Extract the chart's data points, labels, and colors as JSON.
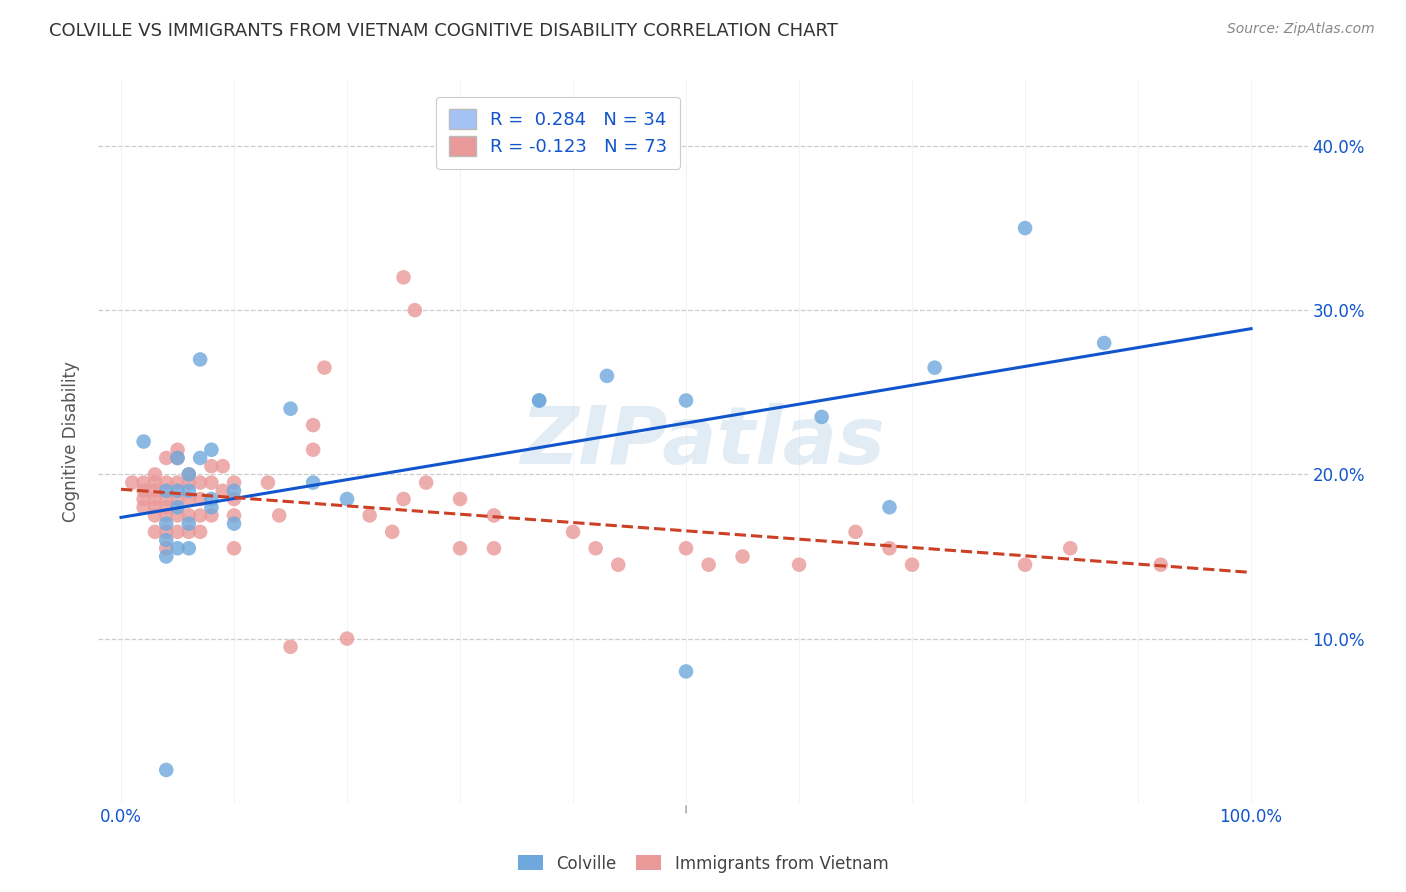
{
  "title": "COLVILLE VS IMMIGRANTS FROM VIETNAM COGNITIVE DISABILITY CORRELATION CHART",
  "source": "Source: ZipAtlas.com",
  "ylabel": "Cognitive Disability",
  "y_tick_labels": [
    "10.0%",
    "20.0%",
    "30.0%",
    "40.0%"
  ],
  "y_tick_values": [
    0.1,
    0.2,
    0.3,
    0.4
  ],
  "x_tick_values": [
    0.0,
    0.1,
    0.2,
    0.3,
    0.4,
    0.5,
    0.6,
    0.7,
    0.8,
    0.9,
    1.0
  ],
  "x_tick_labels_visible": {
    "0.0": "0.0%",
    "1.0": "100.0%"
  },
  "xlim": [
    -0.02,
    1.05
  ],
  "ylim": [
    0.0,
    0.44
  ],
  "colville_R": 0.284,
  "colville_N": 34,
  "vietnam_R": -0.123,
  "vietnam_N": 73,
  "colville_color": "#6fa8dc",
  "vietnam_color": "#ea9999",
  "trendline_colville_color": "#1155cc",
  "trendline_vietnam_color": "#cc4125",
  "trendline_vietnam_style": "--",
  "legend_box_colville": "#a4c2f4",
  "legend_box_vietnam": "#ea9999",
  "watermark": "ZIPatlas",
  "colville_x": [
    0.02,
    0.07,
    0.07,
    0.04,
    0.04,
    0.04,
    0.04,
    0.05,
    0.05,
    0.05,
    0.05,
    0.06,
    0.06,
    0.06,
    0.06,
    0.08,
    0.08,
    0.08,
    0.1,
    0.1,
    0.15,
    0.17,
    0.2,
    0.37,
    0.37,
    0.43,
    0.5,
    0.5,
    0.62,
    0.68,
    0.72,
    0.8,
    0.87,
    0.04
  ],
  "colville_y": [
    0.22,
    0.27,
    0.21,
    0.19,
    0.17,
    0.16,
    0.15,
    0.21,
    0.19,
    0.18,
    0.155,
    0.2,
    0.19,
    0.17,
    0.155,
    0.215,
    0.185,
    0.18,
    0.19,
    0.17,
    0.24,
    0.195,
    0.185,
    0.245,
    0.245,
    0.26,
    0.245,
    0.08,
    0.235,
    0.18,
    0.265,
    0.35,
    0.28,
    0.02
  ],
  "vietnam_x": [
    0.01,
    0.02,
    0.02,
    0.02,
    0.02,
    0.03,
    0.03,
    0.03,
    0.03,
    0.03,
    0.03,
    0.03,
    0.04,
    0.04,
    0.04,
    0.04,
    0.04,
    0.04,
    0.04,
    0.05,
    0.05,
    0.05,
    0.05,
    0.05,
    0.05,
    0.06,
    0.06,
    0.06,
    0.06,
    0.06,
    0.07,
    0.07,
    0.07,
    0.07,
    0.08,
    0.08,
    0.08,
    0.09,
    0.09,
    0.1,
    0.1,
    0.1,
    0.1,
    0.13,
    0.14,
    0.15,
    0.17,
    0.17,
    0.18,
    0.2,
    0.22,
    0.24,
    0.25,
    0.25,
    0.26,
    0.27,
    0.3,
    0.3,
    0.33,
    0.33,
    0.4,
    0.42,
    0.44,
    0.5,
    0.52,
    0.55,
    0.6,
    0.65,
    0.68,
    0.7,
    0.8,
    0.84,
    0.92
  ],
  "vietnam_y": [
    0.195,
    0.195,
    0.19,
    0.185,
    0.18,
    0.2,
    0.195,
    0.19,
    0.185,
    0.18,
    0.175,
    0.165,
    0.21,
    0.195,
    0.185,
    0.18,
    0.175,
    0.165,
    0.155,
    0.215,
    0.21,
    0.195,
    0.185,
    0.175,
    0.165,
    0.2,
    0.195,
    0.185,
    0.175,
    0.165,
    0.195,
    0.185,
    0.175,
    0.165,
    0.205,
    0.195,
    0.175,
    0.205,
    0.19,
    0.195,
    0.185,
    0.175,
    0.155,
    0.195,
    0.175,
    0.095,
    0.23,
    0.215,
    0.265,
    0.1,
    0.175,
    0.165,
    0.32,
    0.185,
    0.3,
    0.195,
    0.185,
    0.155,
    0.175,
    0.155,
    0.165,
    0.155,
    0.145,
    0.155,
    0.145,
    0.15,
    0.145,
    0.165,
    0.155,
    0.145,
    0.145,
    0.155,
    0.145
  ]
}
